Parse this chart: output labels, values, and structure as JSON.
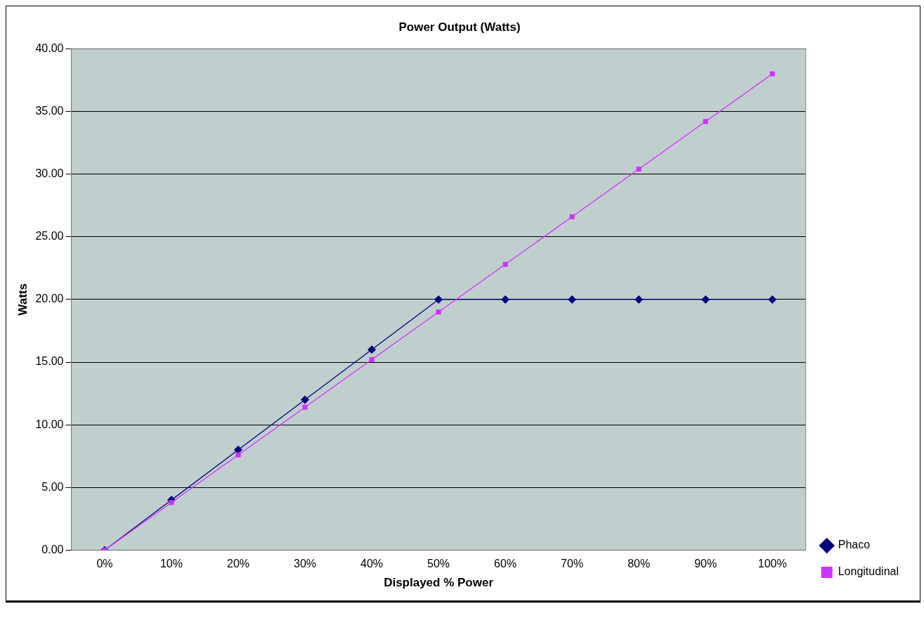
{
  "chart_data": {
    "type": "line",
    "title": "Power Output (Watts)",
    "xlabel": "Displayed % Power",
    "ylabel": "Watts",
    "categories": [
      "0%",
      "10%",
      "20%",
      "30%",
      "40%",
      "50%",
      "60%",
      "70%",
      "80%",
      "90%",
      "100%"
    ],
    "series": [
      {
        "name": "Phaco",
        "color": "#000080",
        "marker": "diamond",
        "values": [
          0,
          4,
          8,
          12,
          16,
          20,
          20,
          20,
          20,
          20,
          20
        ]
      },
      {
        "name": "Longitudinal",
        "color": "#cc33ff",
        "marker": "square",
        "values": [
          0,
          3.8,
          7.6,
          11.4,
          15.2,
          19,
          22.8,
          26.6,
          30.4,
          34.2,
          38
        ]
      }
    ],
    "ylim": [
      0,
      40
    ],
    "yticks": [
      {
        "value": 0,
        "label": "0.00"
      },
      {
        "value": 5,
        "label": "5.00"
      },
      {
        "value": 10,
        "label": "10.00"
      },
      {
        "value": 15,
        "label": "15.00"
      },
      {
        "value": 20,
        "label": "20.00"
      },
      {
        "value": 25,
        "label": "25.00"
      },
      {
        "value": 30,
        "label": "30.00"
      },
      {
        "value": 35,
        "label": "35.00"
      },
      {
        "value": 40,
        "label": "40.00"
      }
    ],
    "grid": "y",
    "legend": "right",
    "line_style": "solid"
  }
}
